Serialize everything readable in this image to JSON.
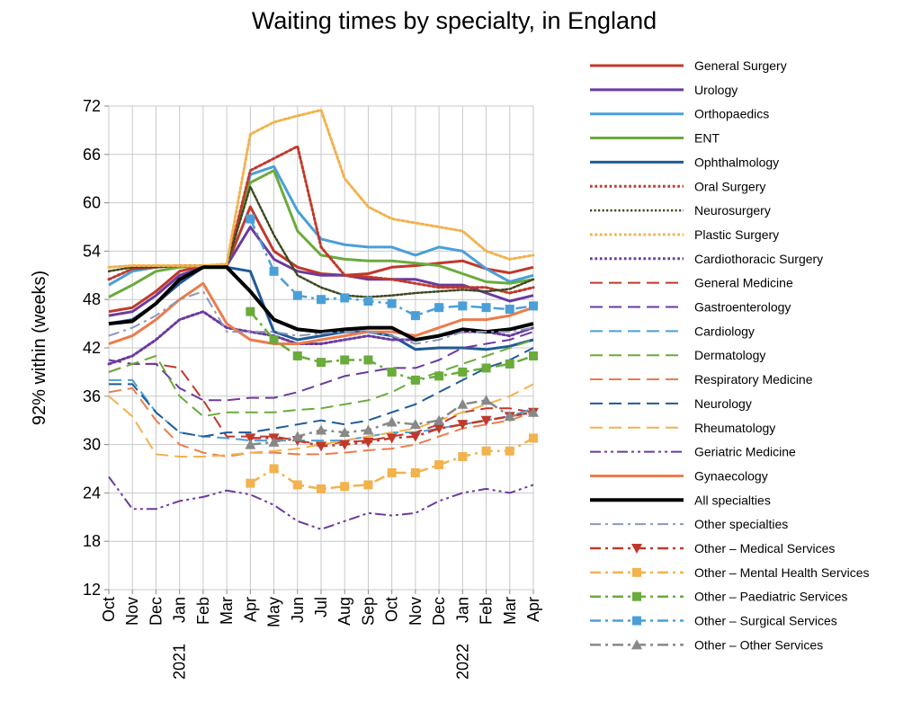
{
  "chart_data": {
    "type": "line",
    "title": "Waiting times by specialty, in England",
    "xlabel": "",
    "ylabel": "92% within (weeks)",
    "ylim": [
      12,
      72
    ],
    "yticks": [
      12,
      18,
      24,
      30,
      36,
      42,
      48,
      54,
      60,
      66,
      72
    ],
    "categories": [
      "Oct 2020",
      "Nov 2020",
      "Dec 2020",
      "Jan 2021",
      "Feb 2021",
      "Mar 2021",
      "Apr 2021",
      "May 2021",
      "Jun 2021",
      "Jul 2021",
      "Aug 2021",
      "Sep 2021",
      "Oct 2021",
      "Nov 2021",
      "Dec 2021",
      "Jan 2022",
      "Feb 2022",
      "Mar 2022",
      "Apr 2022"
    ],
    "tick_labels": [
      "Oct",
      "Nov",
      "Dec",
      "Jan",
      "Feb",
      "Mar",
      "Apr",
      "May",
      "Jun",
      "Jul",
      "Aug",
      "Sep",
      "Oct",
      "Nov",
      "Dec",
      "Jan",
      "Feb",
      "Mar",
      "Apr"
    ],
    "year_labels": [
      {
        "index": 3,
        "label": "2021"
      },
      {
        "index": 15,
        "label": "2022"
      }
    ],
    "grid": true,
    "legend_position": "right",
    "series": [
      {
        "name": "General  Surgery",
        "color": "#c0392b",
        "style": "solid",
        "width": 3,
        "values": [
          46.5,
          47,
          49,
          51.5,
          52.2,
          52.2,
          59.5,
          54,
          52,
          51.2,
          51,
          51.2,
          52,
          52.2,
          52.5,
          52.8,
          51.8,
          51.3,
          52
        ]
      },
      {
        "name": "Urology",
        "color": "#6b3a9e",
        "style": "solid",
        "width": 3,
        "values": [
          46,
          46.5,
          48.5,
          51,
          52,
          52.2,
          57,
          53,
          51.5,
          51,
          51,
          50.5,
          50.5,
          50.5,
          49.8,
          49.8,
          48.8,
          47.8,
          48.5
        ]
      },
      {
        "name": "Orthopaedics",
        "color": "#4a9fd8",
        "style": "solid",
        "width": 3,
        "values": [
          49.8,
          51.5,
          52,
          52.2,
          52.2,
          52.2,
          63.5,
          64.5,
          59,
          55.5,
          54.8,
          54.5,
          54.5,
          53.5,
          54.5,
          54,
          51.8,
          50.2,
          51
        ]
      },
      {
        "name": "ENT",
        "color": "#6aab3b",
        "style": "solid",
        "width": 3,
        "values": [
          48.3,
          49.8,
          51.5,
          52,
          52.2,
          52.2,
          62.5,
          64,
          56.5,
          53.5,
          53,
          52.8,
          52.8,
          52.5,
          52.2,
          51.2,
          50.2,
          50,
          50.5
        ]
      },
      {
        "name": "Ophthalmology",
        "color": "#1f5a96",
        "style": "solid",
        "width": 3,
        "values": [
          45,
          45.5,
          47.5,
          50,
          52,
          52,
          51.5,
          44,
          43,
          43.5,
          44,
          44,
          43.5,
          41.8,
          42,
          42,
          41.8,
          42.2,
          43
        ]
      },
      {
        "name": "Oral Surgery",
        "color": "#c0392b",
        "style": "dot",
        "width": 3,
        "values": [
          50.5,
          51.8,
          52,
          52.2,
          52.2,
          52.2,
          64,
          65.5,
          67,
          54.5,
          51,
          50.8,
          50.5,
          50,
          49.5,
          49.5,
          49.5,
          48.8,
          49.5
        ]
      },
      {
        "name": "Neurosurgery",
        "color": "#3d4a1e",
        "style": "dot",
        "width": 2.5,
        "values": [
          51.5,
          52,
          52,
          52.2,
          52.2,
          52.2,
          62,
          56,
          51,
          49.5,
          48.5,
          48.3,
          48.5,
          48.8,
          49,
          49.2,
          49,
          49.3,
          50.5
        ]
      },
      {
        "name": "Plastic Surgery",
        "color": "#f2b24e",
        "style": "dot",
        "width": 3,
        "values": [
          52,
          52.2,
          52.2,
          52.2,
          52.2,
          52.4,
          68.5,
          70,
          70.8,
          71.5,
          63,
          59.5,
          58,
          57.5,
          57,
          56.5,
          54,
          53,
          53.5
        ]
      },
      {
        "name": "Cardiothoracic  Surgery",
        "color": "#6b3a9e",
        "style": "dot",
        "width": 3,
        "values": [
          40,
          41,
          43,
          45.5,
          46.5,
          44.5,
          44,
          43.5,
          42.5,
          42.5,
          43,
          43.5,
          43,
          43,
          43.5,
          44,
          44,
          43.5,
          44.5
        ]
      },
      {
        "name": "General  Medicine",
        "color": "#c0392b",
        "style": "longdash",
        "width": 2,
        "values": [
          39,
          40,
          40,
          39.5,
          35.5,
          31,
          31,
          31,
          30.5,
          30,
          30.3,
          30.5,
          31,
          31.5,
          32.5,
          34,
          34.5,
          34.5,
          34
        ]
      },
      {
        "name": "Gastroenterology",
        "color": "#6b3a9e",
        "style": "longdash",
        "width": 2,
        "values": [
          40.5,
          40,
          40,
          37,
          35.5,
          35.5,
          35.8,
          35.8,
          36.5,
          37.5,
          38.5,
          39,
          39.5,
          39.5,
          40.5,
          42,
          42.5,
          43,
          44
        ]
      },
      {
        "name": "Cardiology",
        "color": "#4a9fd8",
        "style": "longdash",
        "width": 2,
        "values": [
          38,
          38,
          34,
          31.5,
          31,
          30.8,
          30.5,
          30.5,
          30.5,
          30.5,
          30.5,
          31,
          31.5,
          31.5,
          32,
          32.5,
          33,
          33.5,
          34.5
        ]
      },
      {
        "name": "Dermatology",
        "color": "#6aab3b",
        "style": "longdash",
        "width": 2,
        "values": [
          39,
          40,
          41,
          36,
          33.5,
          34,
          34,
          34,
          34.3,
          34.5,
          35,
          35.5,
          36.5,
          38,
          39,
          40,
          41,
          42,
          43
        ]
      },
      {
        "name": "Respiratory  Medicine",
        "color": "#ec7c4a",
        "style": "longdash",
        "width": 2,
        "values": [
          36.5,
          37,
          33,
          30,
          29,
          28.5,
          29,
          29,
          28.8,
          28.8,
          29,
          29.3,
          29.5,
          30,
          31,
          32,
          32.5,
          33,
          34
        ]
      },
      {
        "name": "Neurology",
        "color": "#1f5a96",
        "style": "longdash",
        "width": 2,
        "values": [
          37.5,
          37.5,
          34,
          31.5,
          31,
          31.5,
          31.5,
          32,
          32.5,
          33,
          32.5,
          33,
          34,
          35,
          36.5,
          38,
          39.5,
          40.5,
          42
        ]
      },
      {
        "name": "Rheumatology",
        "color": "#f2b24e",
        "style": "longdash",
        "width": 2,
        "values": [
          36,
          33.5,
          28.8,
          28.5,
          28.5,
          28.7,
          29,
          29.2,
          29.5,
          30,
          30.5,
          31,
          31.5,
          32,
          33,
          34,
          35,
          36,
          37.5
        ]
      },
      {
        "name": "Geriatric  Medicine",
        "color": "#6b3a9e",
        "style": "dashdotdot",
        "width": 2,
        "values": [
          26,
          22,
          22,
          23,
          23.5,
          24.3,
          23.8,
          22.5,
          20.5,
          19.5,
          20.5,
          21.5,
          21.2,
          21.5,
          23,
          24,
          24.5,
          24,
          25
        ]
      },
      {
        "name": "Gynaecology",
        "color": "#ec7c4a",
        "style": "solid",
        "width": 3,
        "values": [
          42.5,
          43.5,
          45.5,
          48,
          50,
          45,
          43,
          42.5,
          42.5,
          43,
          43.5,
          44,
          44,
          43.5,
          44.5,
          45.5,
          45.5,
          46,
          47
        ]
      },
      {
        "name": "All  specialties",
        "color": "#000000",
        "style": "solid",
        "width": 4,
        "values": [
          45,
          45.3,
          47.5,
          50.5,
          52,
          52,
          49,
          45.5,
          44.3,
          44,
          44.3,
          44.5,
          44.5,
          43,
          43.5,
          44.3,
          44,
          44.3,
          45
        ]
      },
      {
        "name": "Other  specialties",
        "color": "#8899bb",
        "style": "dashdot",
        "width": 2,
        "values": [
          43.5,
          44.5,
          46,
          48,
          49,
          44,
          44,
          44,
          43.5,
          43.8,
          44,
          44,
          43.5,
          42.5,
          43,
          44,
          44,
          44,
          44.5
        ]
      },
      {
        "name": "Other  –  Medical Services",
        "color": "#c0392b",
        "style": "dashdot",
        "width": 2.5,
        "marker": "triangle-down",
        "values": [
          null,
          null,
          null,
          null,
          null,
          null,
          30.8,
          30.8,
          30.5,
          29.8,
          30,
          30.3,
          30.8,
          31,
          32,
          32.5,
          33,
          33.5,
          34
        ]
      },
      {
        "name": "Other  –  Mental Health Services",
        "color": "#f2b24e",
        "style": "dashdot",
        "width": 2.5,
        "marker": "square",
        "values": [
          null,
          null,
          null,
          null,
          null,
          null,
          25.2,
          27,
          25,
          24.5,
          24.8,
          25,
          26.5,
          26.5,
          27.5,
          28.5,
          29.2,
          29.2,
          30.8
        ]
      },
      {
        "name": "Other  –  Paediatric Services",
        "color": "#6aab3b",
        "style": "dashdot",
        "width": 2.5,
        "marker": "square",
        "values": [
          null,
          null,
          null,
          null,
          null,
          null,
          46.5,
          43,
          41,
          40.2,
          40.5,
          40.5,
          39,
          38,
          38.5,
          39,
          39.5,
          40,
          41
        ]
      },
      {
        "name": "Other  –  Surgical Services",
        "color": "#4a9fd8",
        "style": "dashdot",
        "width": 2.5,
        "marker": "square",
        "values": [
          null,
          null,
          null,
          null,
          null,
          null,
          58,
          51.5,
          48.5,
          48,
          48.2,
          47.8,
          47.5,
          46,
          47,
          47.2,
          47,
          46.8,
          47.2
        ]
      },
      {
        "name": "Other  –  Other Services",
        "color": "#888888",
        "style": "dashdot",
        "width": 2.5,
        "marker": "triangle-up",
        "values": [
          null,
          null,
          null,
          null,
          null,
          null,
          30,
          30.3,
          31,
          31.8,
          31.5,
          31.8,
          32.8,
          32.5,
          33,
          35,
          35.5,
          33.5,
          34
        ]
      }
    ]
  }
}
